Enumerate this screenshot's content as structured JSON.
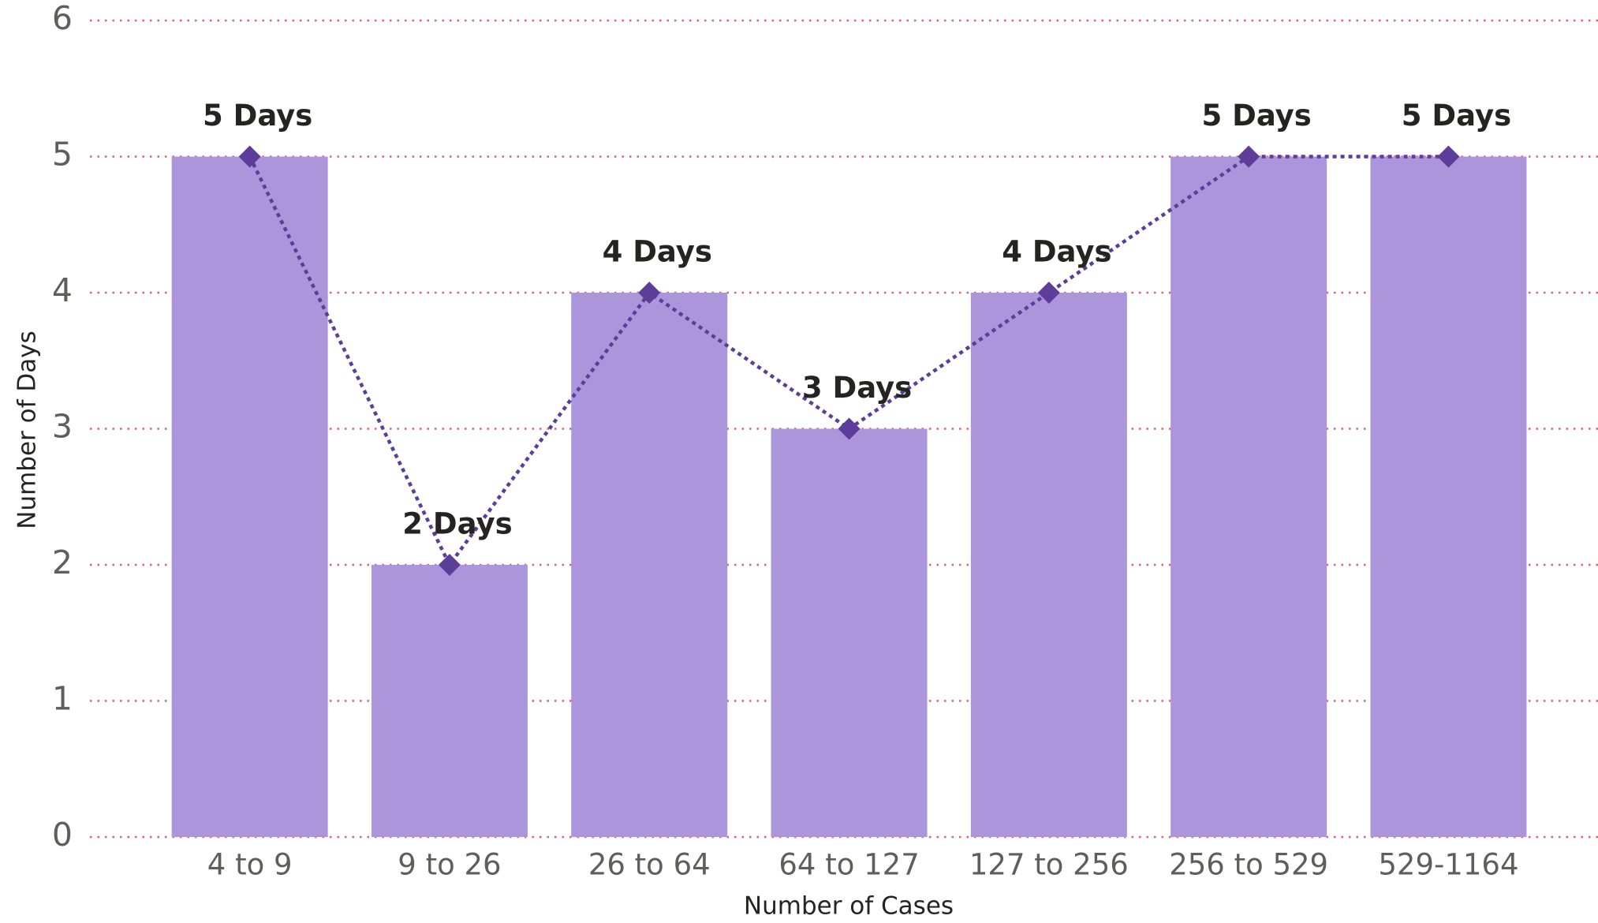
{
  "chart_data": {
    "type": "bar",
    "x_label": "Number of Cases",
    "y_label": "Number of Days",
    "categories": [
      "4 to 9",
      "9 to 26",
      "26 to 64",
      "64 to 127",
      "127 to 256",
      "256 to 529",
      "529-1164"
    ],
    "series": [
      {
        "type": "bar",
        "color": "#ab96dc",
        "values": [
          5,
          2,
          4,
          3,
          4,
          5,
          5
        ]
      },
      {
        "type": "line",
        "color": "#5c3d99",
        "values": [
          5,
          2,
          4,
          3,
          4,
          5,
          5
        ],
        "value_labels": [
          "5 Days",
          "2 Days",
          "4 Days",
          "3 Days",
          "4 Days",
          "5 Days",
          "5 Days"
        ]
      }
    ],
    "ylim": [
      0,
      6
    ],
    "yticks": [
      0,
      1,
      2,
      3,
      4,
      5,
      6
    ],
    "grid": true,
    "grid_color": "#e06070"
  }
}
